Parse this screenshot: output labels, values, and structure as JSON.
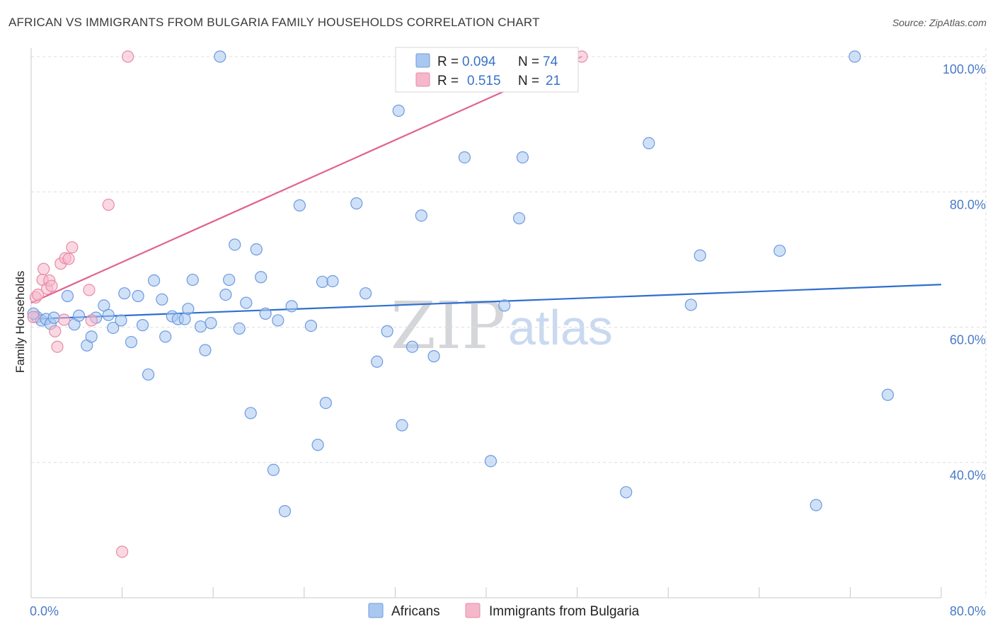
{
  "title": "AFRICAN VS IMMIGRANTS FROM BULGARIA FAMILY HOUSEHOLDS CORRELATION CHART",
  "source": "Source: ZipAtlas.com",
  "watermark": {
    "zip": "ZIP",
    "atlas": "atlas"
  },
  "legend": {
    "rows": [
      {
        "r_label": "R =",
        "r_value": "0.094",
        "n_label": "N =",
        "n_value": "74",
        "color": "#a9c8f0"
      },
      {
        "r_label": "R =",
        "r_value": "0.515",
        "n_label": "N =",
        "n_value": "21",
        "color": "#f5b8cb"
      }
    ]
  },
  "chart_data": {
    "type": "scatter",
    "title": "AFRICAN VS IMMIGRANTS FROM BULGARIA FAMILY HOUSEHOLDS CORRELATION CHART",
    "xlabel": "",
    "ylabel": "Family Households",
    "xlim": [
      0,
      80
    ],
    "ylim": [
      20,
      100
    ],
    "x_tick_labels": [
      "0.0%",
      "80.0%"
    ],
    "y_tick_labels": [
      "40.0%",
      "60.0%",
      "80.0%",
      "100.0%"
    ],
    "y_ticks": [
      40,
      60,
      80,
      100
    ],
    "grid": true,
    "legend_position": "top-center",
    "series": [
      {
        "name": "Africans",
        "color": "#a9c8f0",
        "stroke": "#6b9ae0",
        "trend": {
          "x0": 0,
          "y0": 61.2,
          "x1": 80,
          "y1": 66.3,
          "color": "#2f6fcf"
        },
        "points": [
          [
            0.5,
            61.5
          ],
          [
            0.9,
            61.0
          ],
          [
            1.3,
            61.2
          ],
          [
            1.7,
            60.5
          ],
          [
            2.0,
            61.4
          ],
          [
            3.2,
            64.6
          ],
          [
            3.8,
            60.4
          ],
          [
            4.2,
            61.7
          ],
          [
            4.9,
            57.3
          ],
          [
            5.3,
            58.6
          ],
          [
            5.7,
            61.4
          ],
          [
            6.4,
            63.2
          ],
          [
            6.8,
            61.8
          ],
          [
            7.2,
            59.9
          ],
          [
            7.9,
            61.0
          ],
          [
            8.2,
            65.0
          ],
          [
            8.8,
            57.8
          ],
          [
            9.4,
            64.6
          ],
          [
            9.8,
            60.3
          ],
          [
            10.3,
            53.0
          ],
          [
            10.8,
            66.9
          ],
          [
            11.5,
            64.1
          ],
          [
            11.8,
            58.6
          ],
          [
            12.4,
            61.6
          ],
          [
            12.9,
            61.2
          ],
          [
            13.5,
            61.2
          ],
          [
            13.8,
            62.7
          ],
          [
            14.2,
            67.0
          ],
          [
            14.9,
            60.1
          ],
          [
            15.3,
            56.6
          ],
          [
            15.8,
            60.6
          ],
          [
            16.6,
            100.0
          ],
          [
            17.1,
            64.8
          ],
          [
            17.4,
            67.0
          ],
          [
            17.9,
            72.2
          ],
          [
            18.3,
            59.8
          ],
          [
            18.9,
            63.6
          ],
          [
            19.3,
            47.3
          ],
          [
            19.8,
            71.5
          ],
          [
            20.2,
            67.4
          ],
          [
            20.6,
            62.0
          ],
          [
            21.3,
            38.9
          ],
          [
            21.7,
            61.0
          ],
          [
            22.3,
            32.8
          ],
          [
            22.9,
            63.1
          ],
          [
            23.6,
            78.0
          ],
          [
            24.6,
            60.2
          ],
          [
            25.2,
            42.6
          ],
          [
            25.6,
            66.7
          ],
          [
            25.9,
            48.8
          ],
          [
            26.5,
            66.8
          ],
          [
            28.6,
            78.3
          ],
          [
            29.4,
            65.0
          ],
          [
            30.4,
            54.9
          ],
          [
            31.3,
            59.4
          ],
          [
            32.3,
            92.0
          ],
          [
            32.6,
            45.5
          ],
          [
            33.5,
            57.1
          ],
          [
            34.3,
            76.5
          ],
          [
            35.4,
            55.7
          ],
          [
            38.1,
            85.1
          ],
          [
            40.4,
            40.2
          ],
          [
            41.6,
            63.2
          ],
          [
            43.2,
            85.1
          ],
          [
            42.9,
            76.1
          ],
          [
            52.3,
            35.6
          ],
          [
            54.3,
            87.2
          ],
          [
            58.0,
            63.3
          ],
          [
            58.8,
            70.6
          ],
          [
            65.8,
            71.3
          ],
          [
            69.0,
            33.7
          ],
          [
            72.4,
            100.0
          ],
          [
            75.3,
            50.0
          ],
          [
            0.2,
            62.0
          ]
        ]
      },
      {
        "name": "Immigrants from Bulgaria",
        "color": "#f5b8cb",
        "stroke": "#e88aa8",
        "trend": {
          "x0": 0,
          "y0": 63.6,
          "x1": 48.4,
          "y1": 100.0,
          "color": "#e0638f"
        },
        "points": [
          [
            0.2,
            61.5
          ],
          [
            0.4,
            64.4
          ],
          [
            0.6,
            64.8
          ],
          [
            1.0,
            67.0
          ],
          [
            1.1,
            68.6
          ],
          [
            1.4,
            65.7
          ],
          [
            1.6,
            66.9
          ],
          [
            1.8,
            66.1
          ],
          [
            2.1,
            59.4
          ],
          [
            2.3,
            57.1
          ],
          [
            2.6,
            69.4
          ],
          [
            2.9,
            61.1
          ],
          [
            3.0,
            70.2
          ],
          [
            3.3,
            70.1
          ],
          [
            3.6,
            71.8
          ],
          [
            5.1,
            65.5
          ],
          [
            5.3,
            61.0
          ],
          [
            6.8,
            78.1
          ],
          [
            8.5,
            100.0
          ],
          [
            8.0,
            26.8
          ],
          [
            48.4,
            100.0
          ]
        ]
      }
    ]
  }
}
